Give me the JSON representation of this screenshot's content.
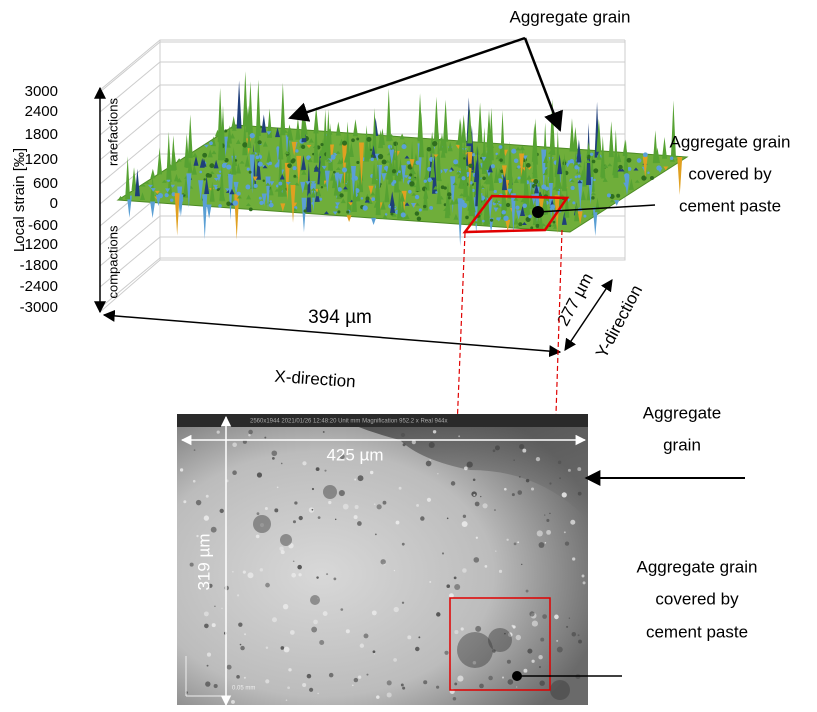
{
  "top_annotation": "Aggregate grain",
  "plot3d": {
    "y_axis_label": "Local strain [‰]",
    "yticks": [
      3000,
      2400,
      1800,
      1200,
      600,
      0,
      -600,
      -1200,
      -1800,
      -2400,
      -3000
    ],
    "upper_label": "rarefactions",
    "lower_label": "compactions",
    "x_size": "394 µm",
    "y_size": "277 µm",
    "x_direction": "X-direction",
    "y_direction": "Y-direction",
    "region_label": [
      "Aggregate grain",
      "covered by",
      "cement paste"
    ]
  },
  "micrograph": {
    "header": "2560x1944   2021/01/26 12:48:20   Unit  mm   Magnification  952.2 x   Real 944x",
    "width": "425 µm",
    "height": "319 µm",
    "scale_bar": "0.05 mm",
    "grain_label": [
      "Aggregate",
      "grain"
    ],
    "region_label": [
      "Aggregate grain",
      "covered by",
      "cement paste"
    ]
  }
}
